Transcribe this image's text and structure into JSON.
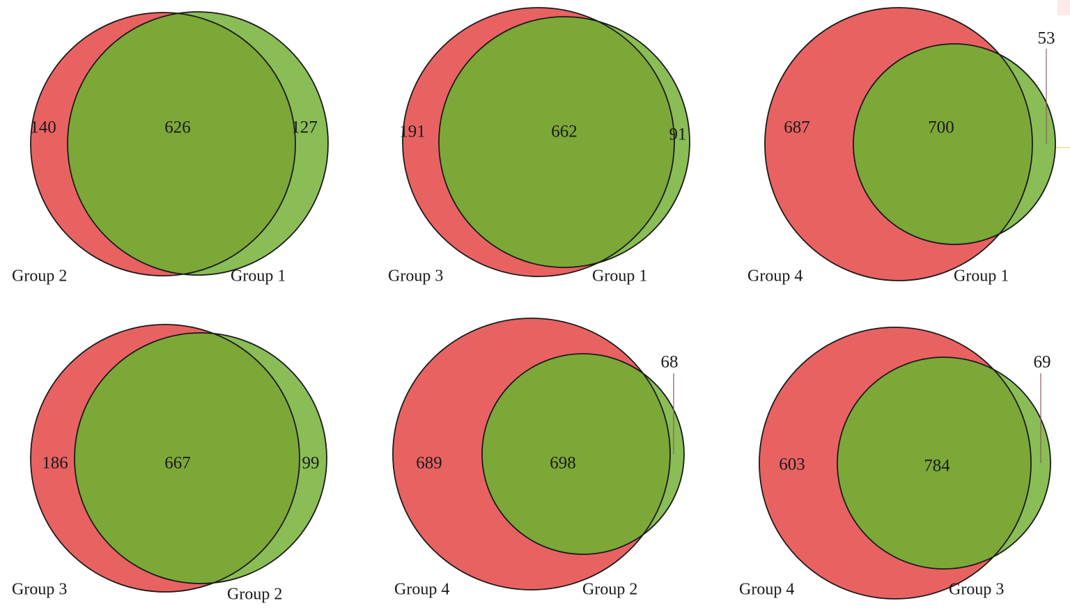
{
  "colors": {
    "left_circle": "#e96262",
    "right_circle": "#8abd56",
    "overlap": "#7ca838",
    "stroke": "#1a1a1a",
    "leader": "#8a5a5a"
  },
  "panels": [
    {
      "left_group": "Group 2",
      "right_group": "Group 1",
      "left_only": "140",
      "overlap": "626",
      "right_only": "127"
    },
    {
      "left_group": "Group 3",
      "right_group": "Group 1",
      "left_only": "191",
      "overlap": "662",
      "right_only": "91"
    },
    {
      "left_group": "Group 4",
      "right_group": "Group 1",
      "left_only": "687",
      "overlap": "700",
      "right_only": "53"
    },
    {
      "left_group": "Group 3",
      "right_group": "Group 2",
      "left_only": "186",
      "overlap": "667",
      "right_only": "99"
    },
    {
      "left_group": "Group 4",
      "right_group": "Group 2",
      "left_only": "689",
      "overlap": "698",
      "right_only": "68"
    },
    {
      "left_group": "Group 4",
      "right_group": "Group 3",
      "left_only": "603",
      "overlap": "784",
      "right_only": "69"
    }
  ]
}
